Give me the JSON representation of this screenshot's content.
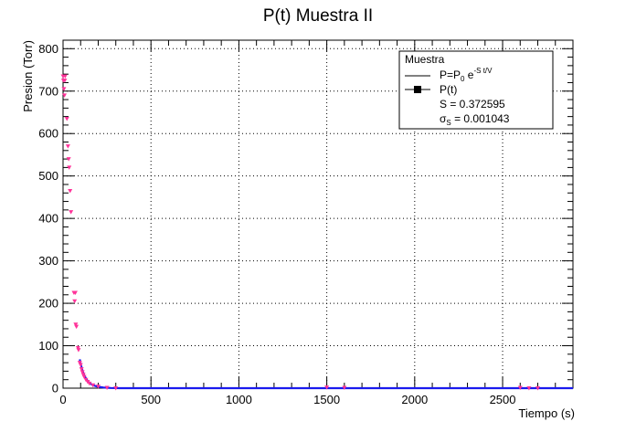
{
  "chart_data": {
    "type": "scatter",
    "title": "P(t) Muestra II",
    "xlabel": "Tiempo (s)",
    "ylabel": "Presion (Torr)",
    "xlim": [
      0,
      2900
    ],
    "ylim": [
      0,
      820
    ],
    "xticks": [
      0,
      500,
      1000,
      1500,
      2000,
      2500
    ],
    "xtick_labels": [
      "0",
      "500",
      "1000",
      "1500",
      "2000",
      "2500"
    ],
    "yticks": [
      0,
      100,
      200,
      300,
      400,
      500,
      600,
      700,
      800
    ],
    "ytick_labels": [
      "0",
      "100",
      "200",
      "300",
      "400",
      "500",
      "600",
      "700",
      "800"
    ],
    "grid": true,
    "legend_position": "top-right",
    "legend": {
      "header": "Muestra",
      "fit_label": "P=P",
      "fit_label_sub": "0",
      "fit_label_mid": " e",
      "fit_label_sup": "-S t/V",
      "data_label": "P(t)",
      "s_label": "S = 0.372595",
      "sigma_symbol": "σ",
      "sigma_sub": "S",
      "sigma_rest": " = 0.001043"
    },
    "colors": {
      "data": "#ff3399",
      "fit": "#1a1aee",
      "grid": "#000000",
      "axis": "#000000"
    },
    "series": [
      {
        "name": "P(t)",
        "points": [
          [
            0,
            735
          ],
          [
            2,
            725
          ],
          [
            5,
            705
          ],
          [
            8,
            690
          ],
          [
            10,
            725
          ],
          [
            12,
            735
          ],
          [
            22,
            635
          ],
          [
            28,
            570
          ],
          [
            32,
            540
          ],
          [
            35,
            520
          ],
          [
            40,
            465
          ],
          [
            45,
            415
          ],
          [
            62,
            225
          ],
          [
            66,
            205
          ],
          [
            70,
            225
          ],
          [
            72,
            150
          ],
          [
            76,
            145
          ],
          [
            85,
            95
          ],
          [
            88,
            90
          ],
          [
            95,
            60
          ],
          [
            100,
            55
          ],
          [
            105,
            45
          ],
          [
            110,
            38
          ],
          [
            115,
            32
          ],
          [
            120,
            27
          ],
          [
            130,
            20
          ],
          [
            140,
            15
          ],
          [
            150,
            11
          ],
          [
            170,
            7
          ],
          [
            200,
            4
          ],
          [
            250,
            1
          ],
          [
            300,
            0
          ],
          [
            1500,
            2
          ],
          [
            1600,
            1
          ],
          [
            2600,
            1
          ],
          [
            2650,
            0
          ],
          [
            2700,
            0
          ]
        ]
      },
      {
        "name": "fit",
        "x": [
          95,
          100,
          110,
          120,
          130,
          140,
          150,
          165,
          180,
          200,
          230,
          270,
          320,
          400,
          600,
          1000,
          1500,
          2000,
          2500,
          2900
        ],
        "y": [
          68,
          58,
          42,
          31,
          23,
          17,
          12.5,
          8.3,
          5.6,
          3.2,
          1.4,
          0.5,
          0.1,
          0,
          0,
          0,
          0,
          0,
          0,
          0
        ]
      }
    ]
  }
}
